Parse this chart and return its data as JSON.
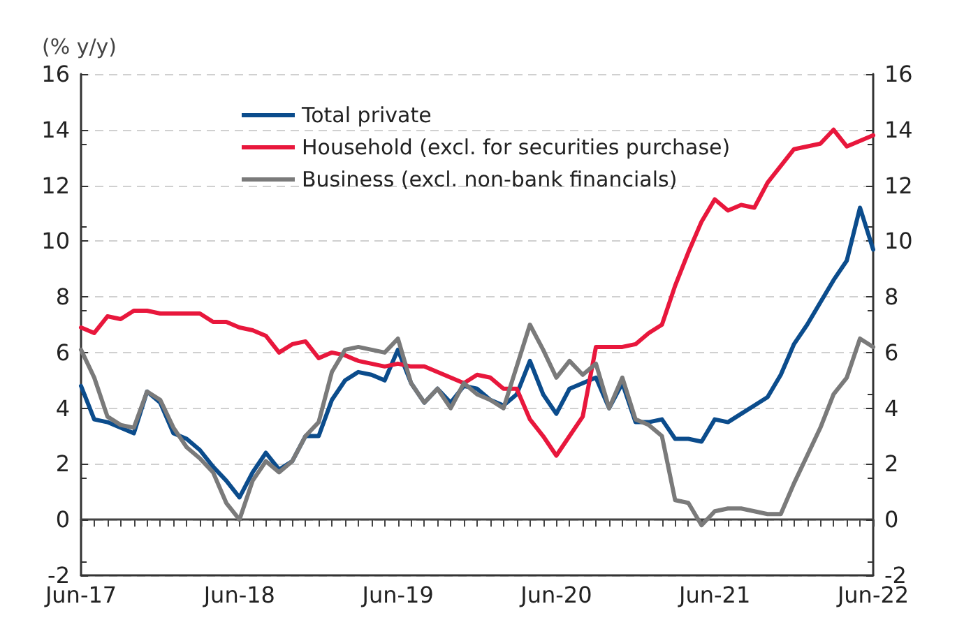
{
  "chart_data": {
    "type": "line",
    "ylabel": "(% y/y)",
    "categories": [
      "Jun-17",
      null,
      null,
      null,
      null,
      null,
      null,
      null,
      null,
      null,
      null,
      null,
      "Jun-18",
      null,
      null,
      null,
      null,
      null,
      null,
      null,
      null,
      null,
      null,
      null,
      "Jun-19",
      null,
      null,
      null,
      null,
      null,
      null,
      null,
      null,
      null,
      null,
      null,
      "Jun-20",
      null,
      null,
      null,
      null,
      null,
      null,
      null,
      null,
      null,
      null,
      null,
      "Jun-21",
      null,
      null,
      null,
      null,
      null,
      null,
      null,
      null,
      null,
      null,
      null,
      "Jun-22"
    ],
    "series": [
      {
        "name": "Total private",
        "color": "#0b4c8c",
        "values": [
          4.8,
          3.6,
          3.5,
          3.3,
          3.1,
          4.6,
          4.2,
          3.1,
          2.9,
          2.5,
          1.9,
          1.4,
          0.8,
          1.7,
          2.4,
          1.8,
          2.1,
          3.0,
          3.0,
          4.3,
          5.0,
          5.3,
          5.2,
          5.0,
          6.1,
          4.9,
          4.2,
          4.7,
          4.2,
          4.8,
          4.7,
          4.3,
          4.1,
          4.5,
          5.7,
          4.5,
          3.8,
          4.7,
          4.9,
          5.1,
          4.0,
          4.9,
          3.5,
          3.5,
          3.6,
          2.9,
          2.9,
          2.8,
          3.6,
          3.5,
          3.8,
          4.1,
          4.4,
          5.2,
          6.3,
          7.0,
          7.8,
          8.6,
          9.3,
          11.2,
          9.7
        ]
      },
      {
        "name": "Household (excl. for securities purchase)",
        "color": "#e8173c",
        "values": [
          6.9,
          6.7,
          7.3,
          7.2,
          7.5,
          7.5,
          7.4,
          7.4,
          7.4,
          7.4,
          7.1,
          7.1,
          6.9,
          6.8,
          6.6,
          6.0,
          6.3,
          6.4,
          5.8,
          6.0,
          5.9,
          5.7,
          5.6,
          5.5,
          5.6,
          5.5,
          5.5,
          5.3,
          5.1,
          4.9,
          5.2,
          5.1,
          4.7,
          4.7,
          3.6,
          3.0,
          2.3,
          3.0,
          3.7,
          6.2,
          6.2,
          6.2,
          6.3,
          6.7,
          7.0,
          8.4,
          9.6,
          10.7,
          11.5,
          11.1,
          11.3,
          11.2,
          12.1,
          12.7,
          13.3,
          13.4,
          13.5,
          14.0,
          13.4,
          13.6,
          13.8
        ]
      },
      {
        "name": "Business (excl. non-bank financials)",
        "color": "#7a7a7a",
        "values": [
          6.1,
          5.1,
          3.7,
          3.4,
          3.3,
          4.6,
          4.3,
          3.3,
          2.6,
          2.2,
          1.7,
          0.6,
          0.0,
          1.4,
          2.1,
          1.7,
          2.1,
          3.0,
          3.5,
          5.3,
          6.1,
          6.2,
          6.1,
          6.0,
          6.5,
          4.9,
          4.2,
          4.7,
          4.0,
          4.9,
          4.5,
          4.3,
          4.0,
          5.5,
          7.0,
          6.1,
          5.1,
          5.7,
          5.2,
          5.6,
          4.0,
          5.1,
          3.6,
          3.4,
          3.0,
          0.7,
          0.6,
          -0.2,
          0.3,
          0.4,
          0.4,
          0.3,
          0.2,
          0.2,
          1.3,
          2.3,
          3.3,
          4.5,
          5.1,
          6.5,
          6.2
        ]
      }
    ],
    "ylim": [
      -2,
      16
    ],
    "yticks": [
      -2,
      0,
      2,
      4,
      6,
      8,
      10,
      12,
      14,
      16
    ],
    "y2lim": [
      -2,
      16
    ],
    "y2ticks": [
      -2,
      0,
      2,
      4,
      6,
      8,
      10,
      12,
      14,
      16
    ],
    "grid": "y",
    "legend": "top left",
    "marker": "none",
    "line_style": "solid"
  }
}
